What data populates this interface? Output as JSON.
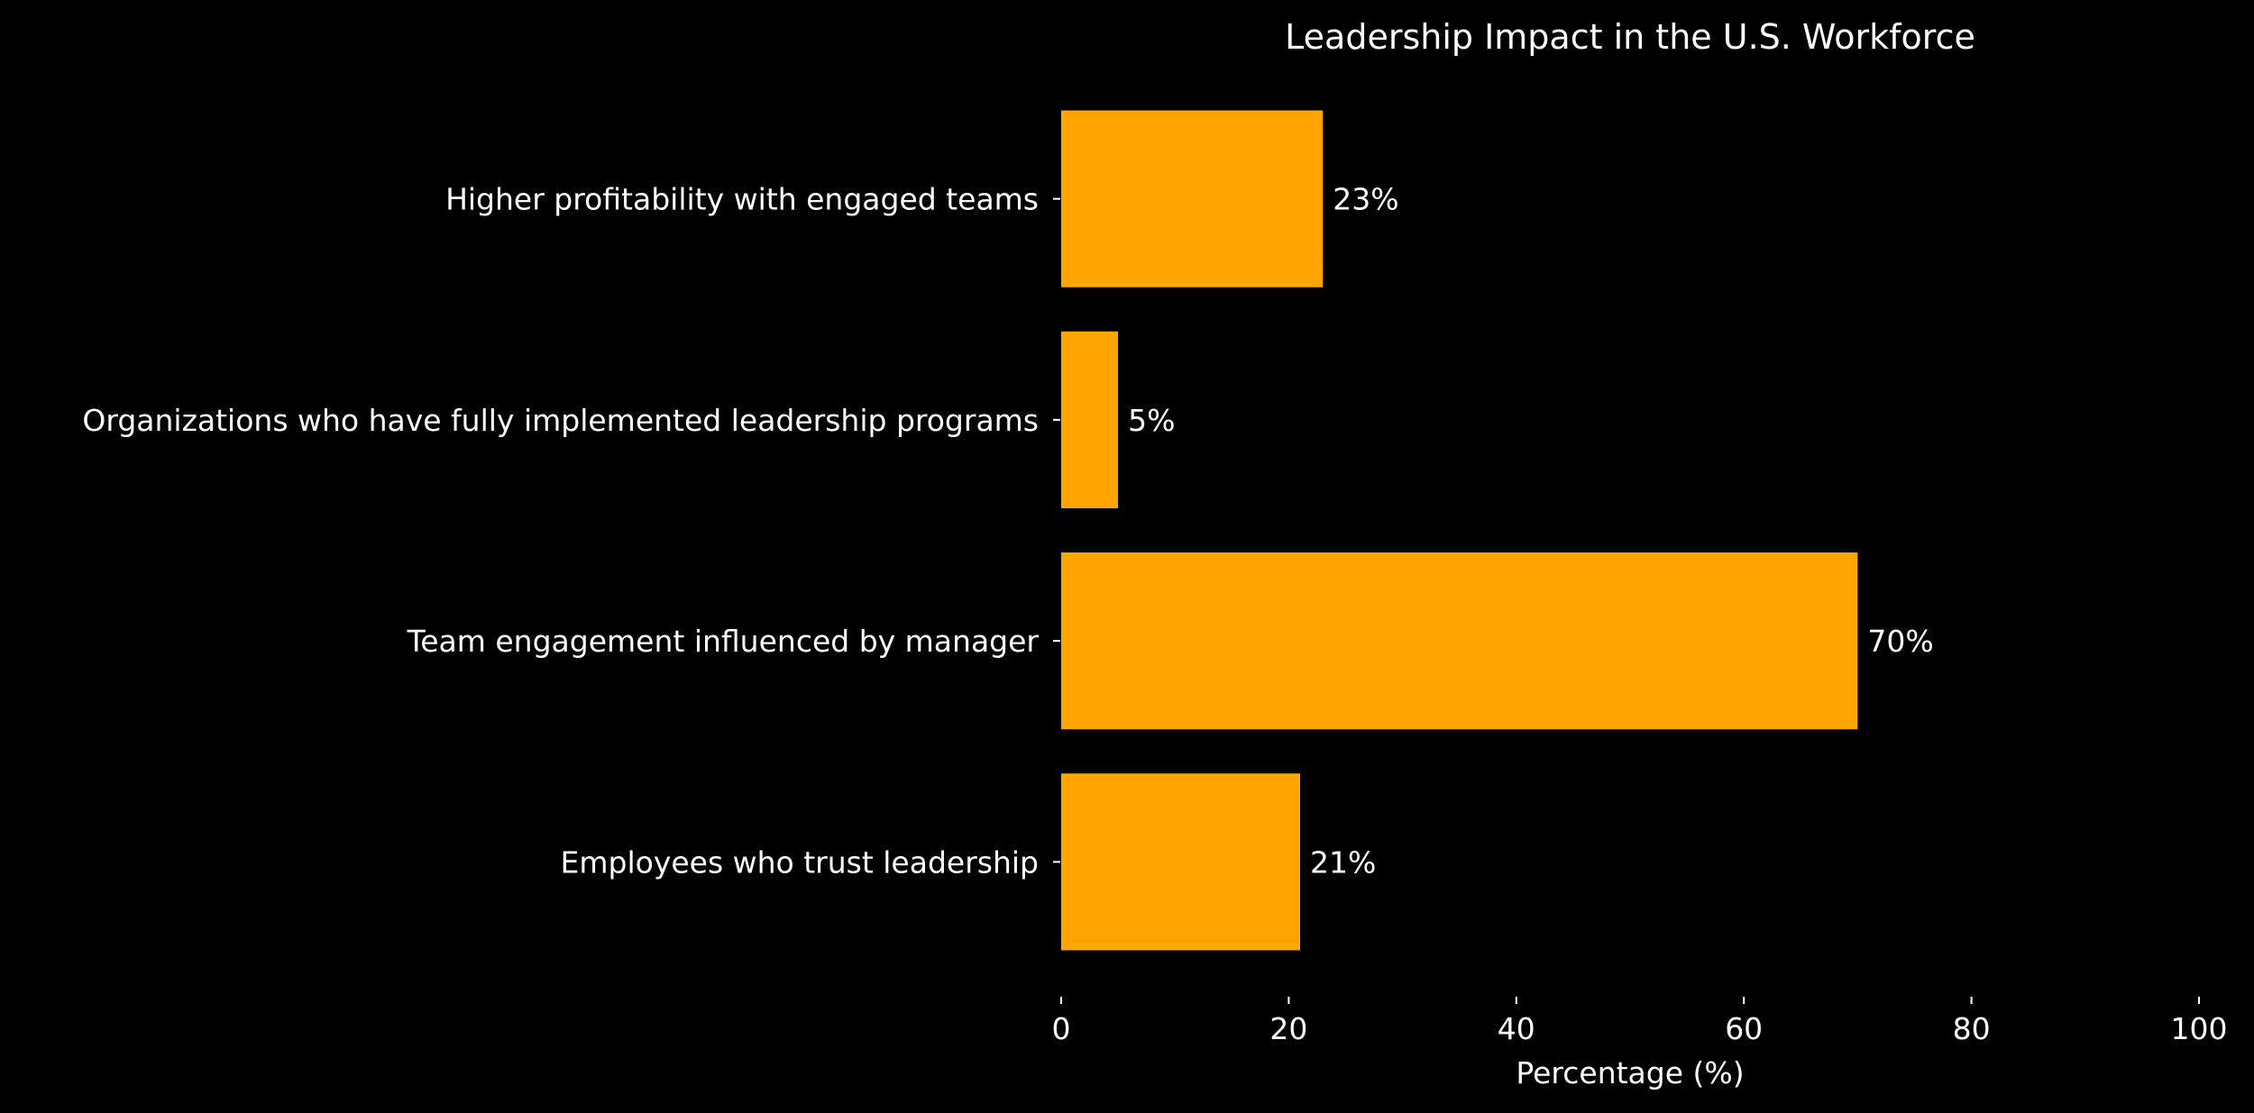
{
  "chart_data": {
    "type": "bar",
    "orientation": "horizontal",
    "title": "Leadership Impact in the U.S. Workforce",
    "xlabel": "Percentage (%)",
    "ylabel": "",
    "xlim": [
      0,
      100
    ],
    "xticks": [
      0,
      20,
      40,
      60,
      80,
      100
    ],
    "categories": [
      "Employees who trust leadership",
      "Team engagement influenced by manager",
      "Organizations who have fully implemented leadership programs",
      "Higher profitability with engaged teams"
    ],
    "values": [
      21,
      70,
      5,
      23
    ],
    "data_labels": [
      "21%",
      "70%",
      "5%",
      "23%"
    ],
    "bar_color": "#FFA500",
    "background_color": "#000000",
    "text_color": "#FFFFFF",
    "grid": false,
    "legend": false
  }
}
